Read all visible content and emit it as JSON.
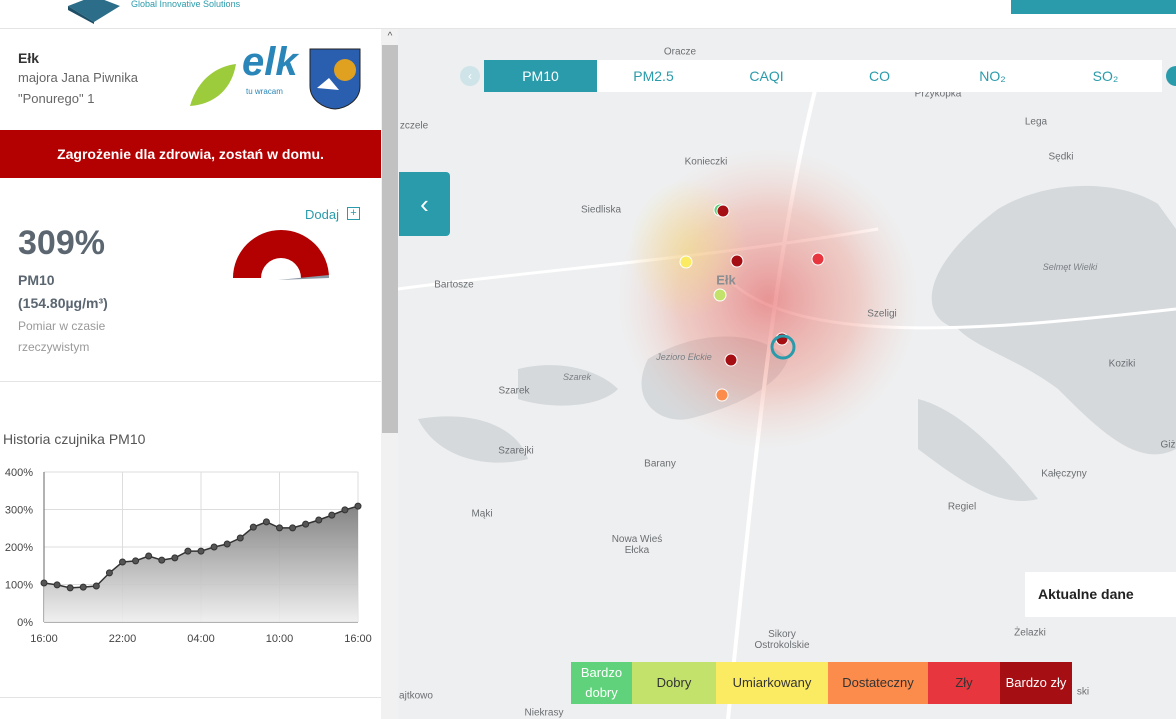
{
  "header": {
    "logo_text": "Global Innovative Solutions"
  },
  "location": {
    "city": "Ełk",
    "address": [
      "majora Jana Piwnika",
      "\"Ponurego\" 1"
    ],
    "logo": {
      "name": "elk",
      "slogan": "tu wracam"
    }
  },
  "alert": "Zagrożenie dla zdrowia, zostań w domu.",
  "add_button": "Dodaj",
  "reading": {
    "value": 309,
    "label": "309%",
    "pollutant": "PM10 (154.80µg/m³)",
    "note": "Pomiar w czasie rzeczywistym"
  },
  "chart_data": {
    "type": "line",
    "title": "Historia czujnika PM10",
    "categories": [
      "16:00",
      null,
      null,
      null,
      null,
      null,
      "22:00",
      null,
      null,
      null,
      null,
      null,
      "04:00",
      null,
      null,
      null,
      null,
      null,
      "10:00",
      null,
      null,
      null,
      null,
      null,
      "16:00"
    ],
    "series": [
      {
        "name": "PM10",
        "color": "#333333",
        "values": [
          104,
          99,
          91,
          93,
          96,
          131,
          160,
          163,
          176,
          165,
          171,
          189,
          189,
          200,
          208,
          224,
          253,
          267,
          251,
          251,
          261,
          272,
          285,
          299,
          309
        ]
      }
    ],
    "ylim": [
      0,
      400
    ],
    "yticks": [
      {
        "value": 0,
        "label": "0%"
      },
      {
        "value": 100,
        "label": "100%"
      },
      {
        "value": 200,
        "label": "200%"
      },
      {
        "value": 300,
        "label": "300%"
      },
      {
        "value": 400,
        "label": "400%"
      }
    ],
    "grid": true
  },
  "tabs": [
    "PM10",
    "PM2.5",
    "CAQI",
    "CO",
    "NO₂",
    "SO₂"
  ],
  "legend": [
    {
      "label": "Bardzo dobry",
      "color": "#5fd27b"
    },
    {
      "label": "Dobry",
      "color": "#c3e26c"
    },
    {
      "label": "Umiarkowany",
      "color": "#fbeb62"
    },
    {
      "label": "Dostateczny",
      "color": "#fb8c4c"
    },
    {
      "label": "Zły",
      "color": "#e8363e"
    },
    {
      "label": "Bardzo zły",
      "color": "#a50f14"
    }
  ],
  "map_panel": "Aktualne dane",
  "map_labels": [
    "Oracze",
    "Przykopka",
    "zczele",
    "Lega",
    "Sędki",
    "Konieczki",
    "Siedliska",
    "Ełk",
    "Bartosze",
    "Selmęt Wielki",
    "Szeligi",
    "Koziki",
    "Jezioro Ełckie",
    "Szarek",
    "Szarek",
    "Szarejki",
    "Barany",
    "Giż",
    "Kałęczyny",
    "Mąki",
    "Regiel",
    "Nowa Wieś Ełcka",
    "Żelazki",
    "Sikory Ostrokolskie",
    "ajtkowo",
    "ski",
    "Niekrasy"
  ]
}
